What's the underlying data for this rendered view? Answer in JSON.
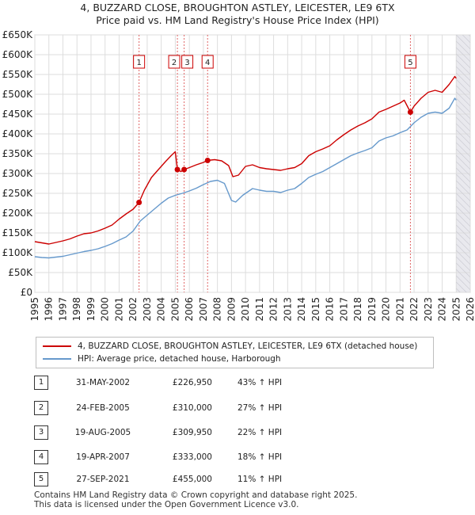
{
  "chart_data": {
    "type": "line",
    "title": "4, BUZZARD CLOSE, BROUGHTON ASTLEY, LEICESTER, LE9 6TX",
    "subtitle": "Price paid vs. HM Land Registry's House Price Index (HPI)",
    "xlim": [
      1995,
      2026
    ],
    "ylim": [
      0,
      650000
    ],
    "y_ticks": [
      {
        "value": 0,
        "label": "£0"
      },
      {
        "value": 50000,
        "label": "£50K"
      },
      {
        "value": 100000,
        "label": "£100K"
      },
      {
        "value": 150000,
        "label": "£150K"
      },
      {
        "value": 200000,
        "label": "£200K"
      },
      {
        "value": 250000,
        "label": "£250K"
      },
      {
        "value": 300000,
        "label": "£300K"
      },
      {
        "value": 350000,
        "label": "£350K"
      },
      {
        "value": 400000,
        "label": "£400K"
      },
      {
        "value": 450000,
        "label": "£450K"
      },
      {
        "value": 500000,
        "label": "£500K"
      },
      {
        "value": 550000,
        "label": "£550K"
      },
      {
        "value": 600000,
        "label": "£600K"
      },
      {
        "value": 650000,
        "label": "£650K"
      }
    ],
    "x_ticks": [
      "1995",
      "1996",
      "1997",
      "1998",
      "1999",
      "2000",
      "2001",
      "2002",
      "2003",
      "2004",
      "2005",
      "2006",
      "2007",
      "2008",
      "2009",
      "2010",
      "2011",
      "2012",
      "2013",
      "2014",
      "2015",
      "2016",
      "2017",
      "2018",
      "2019",
      "2020",
      "2021",
      "2022",
      "2023",
      "2024",
      "2025",
      "2026"
    ],
    "forecast_start": 2025.0,
    "grid": true,
    "series": [
      {
        "name": "4, BUZZARD CLOSE, BROUGHTON ASTLEY, LEICESTER, LE9 6TX (detached house)",
        "color": "#cc0000",
        "points": [
          [
            1995.0,
            128000
          ],
          [
            1995.5,
            125000
          ],
          [
            1996.0,
            122000
          ],
          [
            1996.5,
            126000
          ],
          [
            1997.0,
            130000
          ],
          [
            1997.5,
            135000
          ],
          [
            1998.0,
            142000
          ],
          [
            1998.5,
            148000
          ],
          [
            1999.0,
            150000
          ],
          [
            1999.5,
            155000
          ],
          [
            2000.0,
            162000
          ],
          [
            2000.5,
            170000
          ],
          [
            2001.0,
            185000
          ],
          [
            2001.5,
            198000
          ],
          [
            2002.0,
            210000
          ],
          [
            2002.42,
            226950
          ],
          [
            2002.8,
            258000
          ],
          [
            2003.3,
            290000
          ],
          [
            2003.8,
            310000
          ],
          [
            2004.3,
            330000
          ],
          [
            2004.7,
            345000
          ],
          [
            2005.0,
            355000
          ],
          [
            2005.15,
            310000
          ],
          [
            2005.4,
            305000
          ],
          [
            2005.63,
            309950
          ],
          [
            2006.0,
            315000
          ],
          [
            2006.5,
            322000
          ],
          [
            2007.0,
            328000
          ],
          [
            2007.3,
            333000
          ],
          [
            2007.8,
            335000
          ],
          [
            2008.3,
            332000
          ],
          [
            2008.8,
            320000
          ],
          [
            2009.1,
            292000
          ],
          [
            2009.5,
            296000
          ],
          [
            2010.0,
            318000
          ],
          [
            2010.5,
            322000
          ],
          [
            2011.0,
            315000
          ],
          [
            2011.5,
            312000
          ],
          [
            2012.0,
            310000
          ],
          [
            2012.5,
            308000
          ],
          [
            2013.0,
            312000
          ],
          [
            2013.5,
            315000
          ],
          [
            2014.0,
            325000
          ],
          [
            2014.5,
            345000
          ],
          [
            2015.0,
            355000
          ],
          [
            2015.5,
            362000
          ],
          [
            2016.0,
            370000
          ],
          [
            2016.5,
            385000
          ],
          [
            2017.0,
            398000
          ],
          [
            2017.5,
            410000
          ],
          [
            2018.0,
            420000
          ],
          [
            2018.5,
            428000
          ],
          [
            2019.0,
            438000
          ],
          [
            2019.5,
            455000
          ],
          [
            2020.0,
            462000
          ],
          [
            2020.5,
            470000
          ],
          [
            2021.0,
            478000
          ],
          [
            2021.3,
            485000
          ],
          [
            2021.74,
            455000
          ],
          [
            2022.0,
            470000
          ],
          [
            2022.5,
            490000
          ],
          [
            2023.0,
            505000
          ],
          [
            2023.5,
            510000
          ],
          [
            2024.0,
            505000
          ],
          [
            2024.5,
            525000
          ],
          [
            2024.9,
            545000
          ],
          [
            2025.0,
            540000
          ]
        ]
      },
      {
        "name": "HPI: Average price, detached house, Harborough",
        "color": "#6699cc",
        "points": [
          [
            1995.0,
            90000
          ],
          [
            1995.5,
            88000
          ],
          [
            1996.0,
            87000
          ],
          [
            1996.5,
            89000
          ],
          [
            1997.0,
            91000
          ],
          [
            1997.5,
            95000
          ],
          [
            1998.0,
            99000
          ],
          [
            1998.5,
            103000
          ],
          [
            1999.0,
            106000
          ],
          [
            1999.5,
            110000
          ],
          [
            2000.0,
            116000
          ],
          [
            2000.5,
            123000
          ],
          [
            2001.0,
            132000
          ],
          [
            2001.5,
            140000
          ],
          [
            2002.0,
            155000
          ],
          [
            2002.5,
            180000
          ],
          [
            2003.0,
            195000
          ],
          [
            2003.5,
            210000
          ],
          [
            2004.0,
            225000
          ],
          [
            2004.5,
            238000
          ],
          [
            2005.0,
            245000
          ],
          [
            2005.5,
            250000
          ],
          [
            2006.0,
            256000
          ],
          [
            2006.5,
            263000
          ],
          [
            2007.0,
            272000
          ],
          [
            2007.5,
            280000
          ],
          [
            2008.0,
            283000
          ],
          [
            2008.5,
            275000
          ],
          [
            2009.0,
            232000
          ],
          [
            2009.3,
            228000
          ],
          [
            2009.8,
            245000
          ],
          [
            2010.5,
            262000
          ],
          [
            2011.0,
            258000
          ],
          [
            2011.5,
            255000
          ],
          [
            2012.0,
            255000
          ],
          [
            2012.5,
            252000
          ],
          [
            2013.0,
            258000
          ],
          [
            2013.5,
            262000
          ],
          [
            2014.0,
            275000
          ],
          [
            2014.5,
            290000
          ],
          [
            2015.0,
            298000
          ],
          [
            2015.5,
            305000
          ],
          [
            2016.0,
            315000
          ],
          [
            2016.5,
            325000
          ],
          [
            2017.0,
            335000
          ],
          [
            2017.5,
            345000
          ],
          [
            2018.0,
            352000
          ],
          [
            2018.5,
            358000
          ],
          [
            2019.0,
            365000
          ],
          [
            2019.5,
            382000
          ],
          [
            2020.0,
            390000
          ],
          [
            2020.5,
            395000
          ],
          [
            2021.0,
            403000
          ],
          [
            2021.5,
            410000
          ],
          [
            2022.0,
            428000
          ],
          [
            2022.5,
            442000
          ],
          [
            2023.0,
            452000
          ],
          [
            2023.5,
            455000
          ],
          [
            2024.0,
            452000
          ],
          [
            2024.5,
            465000
          ],
          [
            2024.9,
            490000
          ],
          [
            2025.0,
            485000
          ]
        ]
      }
    ],
    "sales": [
      {
        "label": "1",
        "date": "31-MAY-2002",
        "x": 2002.42,
        "price": "£226,950",
        "value": 226950,
        "hpi": "43% ↑ HPI"
      },
      {
        "label": "2",
        "date": "24-FEB-2005",
        "x": 2005.15,
        "price": "£310,000",
        "value": 310000,
        "hpi": "27% ↑ HPI"
      },
      {
        "label": "3",
        "date": "19-AUG-2005",
        "x": 2005.63,
        "price": "£309,950",
        "value": 309950,
        "hpi": "22% ↑ HPI"
      },
      {
        "label": "4",
        "date": "19-APR-2007",
        "x": 2007.3,
        "price": "£333,000",
        "value": 333000,
        "hpi": "18% ↑ HPI"
      },
      {
        "label": "5",
        "date": "27-SEP-2021",
        "x": 2021.74,
        "price": "£455,000",
        "value": 455000,
        "hpi": "11% ↑ HPI"
      }
    ]
  },
  "legend": {
    "series_1": "4, BUZZARD CLOSE, BROUGHTON ASTLEY, LEICESTER, LE9 6TX (detached house)",
    "series_2": "HPI: Average price, detached house, Harborough",
    "color_1": "#cc0000",
    "color_2": "#6699cc"
  },
  "footer": {
    "line1": "Contains HM Land Registry data © Crown copyright and database right 2025.",
    "line2": "This data is licensed under the Open Government Licence v3.0."
  }
}
